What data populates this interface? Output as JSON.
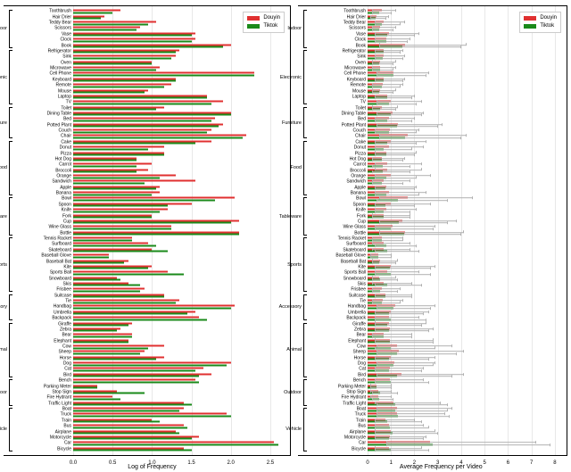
{
  "colors": {
    "douyin": "#e03030",
    "tiktok": "#1a8a1a",
    "err": "#b0b0b0",
    "grid": "#e8e8e8",
    "axis": "#000000",
    "bg": "#ffffff"
  },
  "legend": {
    "douyin": "Douyin",
    "tiktok": "Tiktok"
  },
  "left": {
    "xlabel": "Log of Frequency",
    "xlim": [
      0,
      2.75
    ],
    "xticks": [
      0,
      0.5,
      1.0,
      1.5,
      2.0,
      2.5
    ],
    "show_err": false
  },
  "right": {
    "xlabel": "Average Frequency per Video",
    "xlim": [
      0,
      8.5
    ],
    "xticks": [
      0,
      1,
      2,
      3,
      4,
      5,
      6,
      7,
      8
    ],
    "show_err": true
  },
  "categories": [
    {
      "name": "Indoor",
      "items": [
        {
          "l": "Toothbrush",
          "ld": 0.6,
          "lt": 0.5,
          "rd": 0.6,
          "rt": 0.5,
          "edl": 0.2,
          "edh": 1.2,
          "etl": 0.2,
          "eth": 1.0
        },
        {
          "l": "Hair Drier",
          "ld": 0.4,
          "lt": 0.35,
          "rd": 0.4,
          "rt": 0.35,
          "edl": 0.1,
          "edh": 0.9,
          "etl": 0.1,
          "eth": 0.8
        },
        {
          "l": "Teddy Bear",
          "ld": 1.05,
          "lt": 0.95,
          "rd": 0.7,
          "rt": 0.6,
          "edl": 0.3,
          "edh": 1.6,
          "etl": 0.3,
          "eth": 1.4
        },
        {
          "l": "Scissors",
          "ld": 0.85,
          "lt": 0.8,
          "rd": 0.55,
          "rt": 0.5,
          "edl": 0.2,
          "edh": 1.2,
          "etl": 0.2,
          "eth": 1.1
        },
        {
          "l": "Vase",
          "ld": 1.55,
          "lt": 1.5,
          "rd": 0.9,
          "rt": 0.85,
          "edl": 0.3,
          "edh": 2.2,
          "etl": 0.3,
          "eth": 2.0
        },
        {
          "l": "Clock",
          "ld": 1.55,
          "lt": 1.5,
          "rd": 0.8,
          "rt": 0.8,
          "edl": 0.3,
          "edh": 1.8,
          "etl": 0.3,
          "eth": 1.7
        },
        {
          "l": "Book",
          "ld": 2.0,
          "lt": 1.9,
          "rd": 1.6,
          "rt": 1.5,
          "edl": 0.5,
          "edh": 4.2,
          "etl": 0.5,
          "eth": 4.0
        }
      ]
    },
    {
      "name": "Electronic",
      "items": [
        {
          "l": "Refrigerator",
          "ld": 1.35,
          "lt": 1.3,
          "rd": 0.7,
          "rt": 0.7,
          "edl": 0.3,
          "edh": 1.5,
          "etl": 0.3,
          "eth": 1.4
        },
        {
          "l": "Sink",
          "ld": 1.3,
          "lt": 1.25,
          "rd": 0.7,
          "rt": 0.65,
          "edl": 0.3,
          "edh": 1.6,
          "etl": 0.3,
          "eth": 1.5
        },
        {
          "l": "Oven",
          "ld": 1.0,
          "lt": 1.0,
          "rd": 0.55,
          "rt": 0.5,
          "edl": 0.2,
          "edh": 1.2,
          "etl": 0.2,
          "eth": 1.1
        },
        {
          "l": "Microwave",
          "ld": 1.1,
          "lt": 1.05,
          "rd": 0.55,
          "rt": 0.55,
          "edl": 0.2,
          "edh": 1.2,
          "etl": 0.2,
          "eth": 1.1
        },
        {
          "l": "Cell Phone",
          "ld": 2.3,
          "lt": 2.3,
          "rd": 1.1,
          "rt": 1.1,
          "edl": 0.4,
          "edh": 2.6,
          "etl": 0.4,
          "eth": 2.5
        },
        {
          "l": "Keyboard",
          "ld": 1.3,
          "lt": 1.3,
          "rd": 0.7,
          "rt": 0.7,
          "edl": 0.3,
          "edh": 1.6,
          "etl": 0.3,
          "eth": 1.5
        },
        {
          "l": "Remote",
          "ld": 1.25,
          "lt": 1.15,
          "rd": 0.65,
          "rt": 0.6,
          "edl": 0.2,
          "edh": 1.5,
          "etl": 0.2,
          "eth": 1.4
        },
        {
          "l": "Mouse",
          "ld": 0.95,
          "lt": 0.9,
          "rd": 0.55,
          "rt": 0.5,
          "edl": 0.2,
          "edh": 1.2,
          "etl": 0.2,
          "eth": 1.1
        },
        {
          "l": "Laptop",
          "ld": 1.7,
          "lt": 1.7,
          "rd": 0.85,
          "rt": 0.85,
          "edl": 0.3,
          "edh": 2.0,
          "etl": 0.3,
          "eth": 1.9
        },
        {
          "l": "TV",
          "ld": 1.9,
          "lt": 1.75,
          "rd": 1.0,
          "rt": 0.9,
          "edl": 0.4,
          "edh": 2.3,
          "etl": 0.4,
          "eth": 2.1
        }
      ]
    },
    {
      "name": "Furniture",
      "items": [
        {
          "l": "Toilet",
          "ld": 1.15,
          "lt": 1.05,
          "rd": 0.6,
          "rt": 0.55,
          "edl": 0.2,
          "edh": 1.3,
          "etl": 0.2,
          "eth": 1.2
        },
        {
          "l": "Dining Table",
          "ld": 2.0,
          "lt": 2.0,
          "rd": 1.05,
          "rt": 1.0,
          "edl": 0.4,
          "edh": 2.4,
          "etl": 0.4,
          "eth": 2.3
        },
        {
          "l": "Bed",
          "ld": 1.8,
          "lt": 1.75,
          "rd": 0.9,
          "rt": 0.85,
          "edl": 0.3,
          "edh": 2.0,
          "etl": 0.3,
          "eth": 1.9
        },
        {
          "l": "Potted Plant",
          "ld": 1.9,
          "lt": 1.85,
          "rd": 1.3,
          "rt": 1.25,
          "edl": 0.4,
          "edh": 3.2,
          "etl": 0.4,
          "eth": 3.0
        },
        {
          "l": "Couch",
          "ld": 1.75,
          "lt": 1.7,
          "rd": 0.95,
          "rt": 0.9,
          "edl": 0.3,
          "edh": 2.2,
          "etl": 0.3,
          "eth": 2.1
        },
        {
          "l": "Chair",
          "ld": 2.2,
          "lt": 2.15,
          "rd": 1.7,
          "rt": 1.6,
          "edl": 0.5,
          "edh": 4.2,
          "etl": 0.5,
          "eth": 4.0
        }
      ]
    },
    {
      "name": "Food",
      "items": [
        {
          "l": "Cake",
          "ld": 1.75,
          "lt": 1.55,
          "rd": 1.0,
          "rt": 0.85,
          "edl": 0.3,
          "edh": 2.5,
          "etl": 0.3,
          "eth": 2.1
        },
        {
          "l": "Donut",
          "ld": 1.15,
          "lt": 0.95,
          "rd": 0.9,
          "rt": 0.7,
          "edl": 0.3,
          "edh": 2.4,
          "etl": 0.3,
          "eth": 1.9
        },
        {
          "l": "Pizza",
          "ld": 1.15,
          "lt": 1.15,
          "rd": 0.8,
          "rt": 0.8,
          "edl": 0.3,
          "edh": 2.1,
          "etl": 0.3,
          "eth": 2.0
        },
        {
          "l": "Hot Dog",
          "ld": 0.8,
          "lt": 0.8,
          "rd": 0.6,
          "rt": 0.6,
          "edl": 0.2,
          "edh": 1.6,
          "etl": 0.2,
          "eth": 1.5
        },
        {
          "l": "Carrot",
          "ld": 1.0,
          "lt": 0.8,
          "rd": 0.85,
          "rt": 0.65,
          "edl": 0.3,
          "edh": 2.3,
          "etl": 0.2,
          "eth": 1.8
        },
        {
          "l": "Broccoli",
          "ld": 0.95,
          "lt": 0.8,
          "rd": 0.85,
          "rt": 0.65,
          "edl": 0.3,
          "edh": 2.3,
          "etl": 0.2,
          "eth": 1.8
        },
        {
          "l": "Orange",
          "ld": 1.3,
          "lt": 1.1,
          "rd": 1.0,
          "rt": 0.8,
          "edl": 0.3,
          "edh": 2.7,
          "etl": 0.3,
          "eth": 2.1
        },
        {
          "l": "Sandwich",
          "ld": 1.55,
          "lt": 0.9,
          "rd": 0.7,
          "rt": 0.6,
          "edl": 0.2,
          "edh": 1.8,
          "etl": 0.2,
          "eth": 1.5
        },
        {
          "l": "Apple",
          "ld": 1.1,
          "lt": 1.05,
          "rd": 0.8,
          "rt": 0.75,
          "edl": 0.3,
          "edh": 2.1,
          "etl": 0.3,
          "eth": 2.0
        },
        {
          "l": "Banana",
          "ld": 1.1,
          "lt": 1.0,
          "rd": 0.9,
          "rt": 0.8,
          "edl": 0.3,
          "edh": 2.5,
          "etl": 0.3,
          "eth": 2.2
        }
      ]
    },
    {
      "name": "Tableware",
      "items": [
        {
          "l": "Bowl",
          "ld": 2.05,
          "lt": 1.8,
          "rd": 1.7,
          "rt": 1.3,
          "edl": 0.5,
          "edh": 4.5,
          "etl": 0.4,
          "eth": 3.4
        },
        {
          "l": "Spoon",
          "ld": 1.5,
          "lt": 1.2,
          "rd": 1.0,
          "rt": 0.75,
          "edl": 0.3,
          "edh": 2.7,
          "etl": 0.3,
          "eth": 2.0
        },
        {
          "l": "Knife",
          "ld": 1.2,
          "lt": 1.1,
          "rd": 0.8,
          "rt": 0.7,
          "edl": 0.3,
          "edh": 2.1,
          "etl": 0.3,
          "eth": 1.8
        },
        {
          "l": "Fork",
          "ld": 1.0,
          "lt": 1.0,
          "rd": 0.7,
          "rt": 0.7,
          "edl": 0.2,
          "edh": 1.8,
          "etl": 0.2,
          "eth": 1.8
        },
        {
          "l": "Cup",
          "ld": 2.1,
          "lt": 2.0,
          "rd": 1.5,
          "rt": 1.35,
          "edl": 0.5,
          "edh": 3.8,
          "etl": 0.5,
          "eth": 3.4
        },
        {
          "l": "Wine Glass",
          "ld": 1.25,
          "lt": 1.25,
          "rd": 1.05,
          "rt": 1.0,
          "edl": 0.3,
          "edh": 2.9,
          "etl": 0.3,
          "eth": 2.8
        },
        {
          "l": "Bottle",
          "ld": 2.1,
          "lt": 2.1,
          "rd": 1.6,
          "rt": 1.55,
          "edl": 0.5,
          "edh": 4.1,
          "etl": 0.5,
          "eth": 4.0
        }
      ]
    },
    {
      "name": "Sports",
      "items": [
        {
          "l": "Tennis Racket",
          "ld": 0.75,
          "lt": 0.75,
          "rd": 0.6,
          "rt": 0.6,
          "edl": 0.2,
          "edh": 1.5,
          "etl": 0.2,
          "eth": 1.5
        },
        {
          "l": "Surfboard",
          "ld": 0.95,
          "lt": 1.05,
          "rd": 0.7,
          "rt": 0.8,
          "edl": 0.2,
          "edh": 1.8,
          "etl": 0.3,
          "eth": 2.1
        },
        {
          "l": "Skateboard",
          "ld": 1.0,
          "lt": 1.2,
          "rd": 0.7,
          "rt": 0.85,
          "edl": 0.2,
          "edh": 1.8,
          "etl": 0.3,
          "eth": 2.2
        },
        {
          "l": "Baseball Glove",
          "ld": 0.45,
          "lt": 0.45,
          "rd": 0.45,
          "rt": 0.45,
          "edl": 0.1,
          "edh": 1.0,
          "etl": 0.1,
          "eth": 1.0
        },
        {
          "l": "Baseball Bat",
          "ld": 0.7,
          "lt": 0.65,
          "rd": 0.55,
          "rt": 0.5,
          "edl": 0.2,
          "edh": 1.3,
          "etl": 0.2,
          "eth": 1.2
        },
        {
          "l": "Kite",
          "ld": 1.0,
          "lt": 0.95,
          "rd": 1.0,
          "rt": 0.95,
          "edl": 0.3,
          "edh": 2.9,
          "etl": 0.3,
          "eth": 2.7
        },
        {
          "l": "Sports Ball",
          "ld": 1.2,
          "lt": 1.4,
          "rd": 0.85,
          "rt": 1.0,
          "edl": 0.3,
          "edh": 2.2,
          "etl": 0.3,
          "eth": 2.7
        },
        {
          "l": "Snowboard",
          "ld": 0.55,
          "lt": 0.6,
          "rd": 0.5,
          "rt": 0.55,
          "edl": 0.2,
          "edh": 1.2,
          "etl": 0.2,
          "eth": 1.3
        },
        {
          "l": "Skis",
          "ld": 0.7,
          "lt": 0.85,
          "rd": 0.7,
          "rt": 0.85,
          "edl": 0.2,
          "edh": 1.9,
          "etl": 0.3,
          "eth": 2.3
        },
        {
          "l": "Frisbee",
          "ld": 0.9,
          "lt": 0.85,
          "rd": 0.6,
          "rt": 0.55,
          "edl": 0.2,
          "edh": 1.4,
          "etl": 0.2,
          "eth": 1.3
        }
      ]
    },
    {
      "name": "Accessory",
      "items": [
        {
          "l": "Suitcase",
          "ld": 1.15,
          "lt": 1.15,
          "rd": 0.75,
          "rt": 0.75,
          "edl": 0.3,
          "edh": 1.9,
          "etl": 0.3,
          "eth": 1.9
        },
        {
          "l": "Tie",
          "ld": 1.35,
          "lt": 1.3,
          "rd": 0.65,
          "rt": 0.6,
          "edl": 0.2,
          "edh": 1.5,
          "etl": 0.2,
          "eth": 1.4
        },
        {
          "l": "Handbag",
          "ld": 2.05,
          "lt": 2.0,
          "rd": 1.2,
          "rt": 1.1,
          "edl": 0.4,
          "edh": 2.9,
          "etl": 0.4,
          "eth": 2.7
        },
        {
          "l": "Umbrella",
          "ld": 1.55,
          "lt": 1.45,
          "rd": 1.0,
          "rt": 0.9,
          "edl": 0.3,
          "edh": 2.6,
          "etl": 0.3,
          "eth": 2.4
        },
        {
          "l": "Backpack",
          "ld": 1.6,
          "lt": 1.7,
          "rd": 0.9,
          "rt": 1.0,
          "edl": 0.3,
          "edh": 2.2,
          "etl": 0.3,
          "eth": 2.5
        }
      ]
    },
    {
      "name": "Animal",
      "items": [
        {
          "l": "Giraffe",
          "ld": 0.75,
          "lt": 0.7,
          "rd": 0.9,
          "rt": 0.85,
          "edl": 0.3,
          "edh": 2.5,
          "etl": 0.3,
          "eth": 2.3
        },
        {
          "l": "Zebra",
          "ld": 0.6,
          "lt": 0.55,
          "rd": 0.95,
          "rt": 0.9,
          "edl": 0.3,
          "edh": 2.8,
          "etl": 0.3,
          "eth": 2.6
        },
        {
          "l": "Bear",
          "ld": 0.75,
          "lt": 0.75,
          "rd": 0.7,
          "rt": 0.7,
          "edl": 0.2,
          "edh": 1.9,
          "etl": 0.2,
          "eth": 1.9
        },
        {
          "l": "Elephant",
          "ld": 0.7,
          "lt": 0.7,
          "rd": 0.95,
          "rt": 0.95,
          "edl": 0.3,
          "edh": 2.8,
          "etl": 0.3,
          "eth": 2.8
        },
        {
          "l": "Cow",
          "ld": 1.15,
          "lt": 0.95,
          "rd": 1.25,
          "rt": 1.0,
          "edl": 0.4,
          "edh": 3.6,
          "etl": 0.3,
          "eth": 2.9
        },
        {
          "l": "Sheep",
          "ld": 0.9,
          "lt": 0.85,
          "rd": 1.35,
          "rt": 1.25,
          "edl": 0.4,
          "edh": 4.1,
          "etl": 0.4,
          "eth": 3.8
        },
        {
          "l": "Horse",
          "ld": 1.15,
          "lt": 1.05,
          "rd": 1.0,
          "rt": 0.9,
          "edl": 0.3,
          "edh": 2.9,
          "etl": 0.3,
          "eth": 2.6
        },
        {
          "l": "Dog",
          "ld": 2.0,
          "lt": 1.95,
          "rd": 1.15,
          "rt": 1.1,
          "edl": 0.4,
          "edh": 2.9,
          "etl": 0.4,
          "eth": 2.8
        },
        {
          "l": "Cat",
          "ld": 1.65,
          "lt": 1.55,
          "rd": 0.95,
          "rt": 0.9,
          "edl": 0.3,
          "edh": 2.4,
          "etl": 0.3,
          "eth": 2.3
        },
        {
          "l": "Bird",
          "ld": 1.75,
          "lt": 1.6,
          "rd": 1.45,
          "rt": 1.25,
          "edl": 0.4,
          "edh": 4.1,
          "etl": 0.4,
          "eth": 3.6
        }
      ]
    },
    {
      "name": "Outdoor",
      "items": [
        {
          "l": "Bench",
          "ld": 1.55,
          "lt": 1.6,
          "rd": 0.95,
          "rt": 1.0,
          "edl": 0.3,
          "edh": 2.4,
          "etl": 0.3,
          "eth": 2.6
        },
        {
          "l": "Parking Meter",
          "ld": 0.3,
          "lt": 0.3,
          "rd": 0.4,
          "rt": 0.4,
          "edl": 0.1,
          "edh": 1.0,
          "etl": 0.1,
          "eth": 1.0
        },
        {
          "l": "Stop Sign",
          "ld": 0.55,
          "lt": 0.9,
          "rd": 0.45,
          "rt": 0.55,
          "edl": 0.1,
          "edh": 1.0,
          "etl": 0.2,
          "eth": 1.3
        },
        {
          "l": "Fire Hydrant",
          "ld": 0.5,
          "lt": 0.6,
          "rd": 0.45,
          "rt": 0.5,
          "edl": 0.1,
          "edh": 1.0,
          "etl": 0.2,
          "eth": 1.1
        },
        {
          "l": "Traffic Light",
          "ld": 1.4,
          "lt": 1.5,
          "rd": 1.1,
          "rt": 1.2,
          "edl": 0.3,
          "edh": 3.1,
          "etl": 0.4,
          "eth": 3.4
        }
      ]
    },
    {
      "name": "Vehicle",
      "items": [
        {
          "l": "Boat",
          "ld": 1.4,
          "lt": 1.35,
          "rd": 1.25,
          "rt": 1.2,
          "edl": 0.4,
          "edh": 3.6,
          "etl": 0.4,
          "eth": 3.4
        },
        {
          "l": "Truck",
          "ld": 1.95,
          "lt": 2.0,
          "rd": 1.25,
          "rt": 1.3,
          "edl": 0.4,
          "edh": 3.3,
          "etl": 0.4,
          "eth": 3.5
        },
        {
          "l": "Train",
          "ld": 1.0,
          "lt": 1.1,
          "rd": 0.75,
          "rt": 0.85,
          "edl": 0.3,
          "edh": 2.0,
          "etl": 0.3,
          "eth": 2.3
        },
        {
          "l": "Bus",
          "ld": 1.4,
          "lt": 1.45,
          "rd": 0.9,
          "rt": 0.95,
          "edl": 0.3,
          "edh": 2.4,
          "etl": 0.3,
          "eth": 2.6
        },
        {
          "l": "Airplane",
          "ld": 1.3,
          "lt": 1.35,
          "rd": 1.0,
          "rt": 1.05,
          "edl": 0.3,
          "edh": 2.9,
          "etl": 0.3,
          "eth": 3.0
        },
        {
          "l": "Motorcycle",
          "ld": 1.6,
          "lt": 1.5,
          "rd": 0.95,
          "rt": 0.9,
          "edl": 0.3,
          "edh": 2.5,
          "etl": 0.3,
          "eth": 2.4
        },
        {
          "l": "Car",
          "ld": 2.55,
          "lt": 2.6,
          "rd": 2.65,
          "rt": 2.8,
          "edl": 0.8,
          "edh": 7.2,
          "etl": 0.8,
          "eth": 7.8
        },
        {
          "l": "Bicycle",
          "ld": 1.4,
          "lt": 1.5,
          "rd": 0.9,
          "rt": 1.0,
          "edl": 0.3,
          "edh": 2.3,
          "etl": 0.3,
          "eth": 2.6
        }
      ]
    }
  ]
}
